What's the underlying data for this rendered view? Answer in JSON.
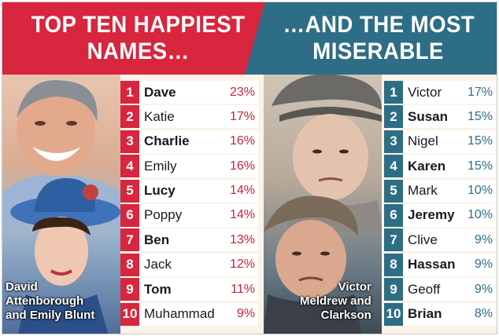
{
  "left": {
    "title_line1": "TOP TEN HAPPIEST",
    "title_line2": "NAMES…",
    "caption_line1": "David",
    "caption_line2": "Attenborough",
    "caption_line3": "and Emily Blunt",
    "color": "#d7263d",
    "rows": [
      {
        "rank": "1",
        "name": "Dave",
        "pct": "23%",
        "bold": true
      },
      {
        "rank": "2",
        "name": "Katie",
        "pct": "17%",
        "bold": false
      },
      {
        "rank": "3",
        "name": "Charlie",
        "pct": "16%",
        "bold": true
      },
      {
        "rank": "4",
        "name": "Emily",
        "pct": "16%",
        "bold": false
      },
      {
        "rank": "5",
        "name": "Lucy",
        "pct": "14%",
        "bold": true
      },
      {
        "rank": "6",
        "name": "Poppy",
        "pct": "14%",
        "bold": false
      },
      {
        "rank": "7",
        "name": "Ben",
        "pct": "13%",
        "bold": true
      },
      {
        "rank": "8",
        "name": "Jack",
        "pct": "12%",
        "bold": false
      },
      {
        "rank": "9",
        "name": "Tom",
        "pct": "11%",
        "bold": true
      },
      {
        "rank": "10",
        "name": "Muhammad",
        "pct": "9%",
        "bold": false
      }
    ]
  },
  "right": {
    "title_line1": "…AND THE MOST",
    "title_line2": "MISERABLE",
    "caption_line1": "Victor",
    "caption_line2": "Meldrew and",
    "caption_line3": "Clarkson",
    "color": "#2e6d86",
    "rows": [
      {
        "rank": "1",
        "name": "Victor",
        "pct": "17%",
        "bold": false
      },
      {
        "rank": "2",
        "name": "Susan",
        "pct": "15%",
        "bold": true
      },
      {
        "rank": "3",
        "name": "Nigel",
        "pct": "15%",
        "bold": false
      },
      {
        "rank": "4",
        "name": "Karen",
        "pct": "15%",
        "bold": true
      },
      {
        "rank": "5",
        "name": "Mark",
        "pct": "10%",
        "bold": false
      },
      {
        "rank": "6",
        "name": "Jeremy",
        "pct": "10%",
        "bold": true
      },
      {
        "rank": "7",
        "name": "Clive",
        "pct": "9%",
        "bold": false
      },
      {
        "rank": "8",
        "name": "Hassan",
        "pct": "9%",
        "bold": true
      },
      {
        "rank": "9",
        "name": "Geoff",
        "pct": "9%",
        "bold": false
      },
      {
        "rank": "10",
        "name": "Brian",
        "pct": "8%",
        "bold": true
      }
    ]
  }
}
